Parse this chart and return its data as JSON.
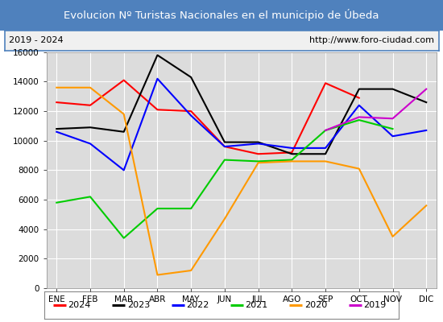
{
  "title": "Evolucion Nº Turistas Nacionales en el municipio de Úbeda",
  "subtitle_left": "2019 - 2024",
  "subtitle_right": "http://www.foro-ciudad.com",
  "months": [
    "ENE",
    "FEB",
    "MAR",
    "ABR",
    "MAY",
    "JUN",
    "JUL",
    "AGO",
    "SEP",
    "OCT",
    "NOV",
    "DIC"
  ],
  "series": {
    "2024": [
      12600,
      12400,
      14100,
      12100,
      12000,
      9600,
      9100,
      9200,
      13900,
      12900,
      null,
      null
    ],
    "2023": [
      10800,
      10900,
      10600,
      15800,
      14300,
      9900,
      9900,
      9100,
      9100,
      13500,
      13500,
      12600
    ],
    "2022": [
      10600,
      9800,
      8000,
      14200,
      11700,
      9600,
      9800,
      9500,
      9500,
      12400,
      10300,
      10700
    ],
    "2021": [
      5800,
      6200,
      3400,
      5400,
      5400,
      8700,
      8600,
      8700,
      10700,
      11400,
      10800,
      null
    ],
    "2020": [
      13600,
      13600,
      11800,
      900,
      1200,
      4700,
      8500,
      8600,
      8600,
      8100,
      3500,
      5600
    ],
    "2019": [
      null,
      null,
      null,
      null,
      null,
      null,
      null,
      null,
      10700,
      11600,
      11500,
      13500
    ]
  },
  "colors": {
    "2024": "#ff0000",
    "2023": "#000000",
    "2022": "#0000ff",
    "2021": "#00cc00",
    "2020": "#ff9900",
    "2019": "#cc00cc"
  },
  "ylim": [
    0,
    16000
  ],
  "yticks": [
    0,
    2000,
    4000,
    6000,
    8000,
    10000,
    12000,
    14000,
    16000
  ],
  "title_bg_color": "#4f81bd",
  "title_text_color": "#ffffff",
  "plot_bg_color": "#dcdcdc",
  "grid_color": "#ffffff",
  "subtitle_bg_color": "#f0f0f0",
  "outer_bg_color": "#ffffff",
  "border_color": "#4f81bd"
}
